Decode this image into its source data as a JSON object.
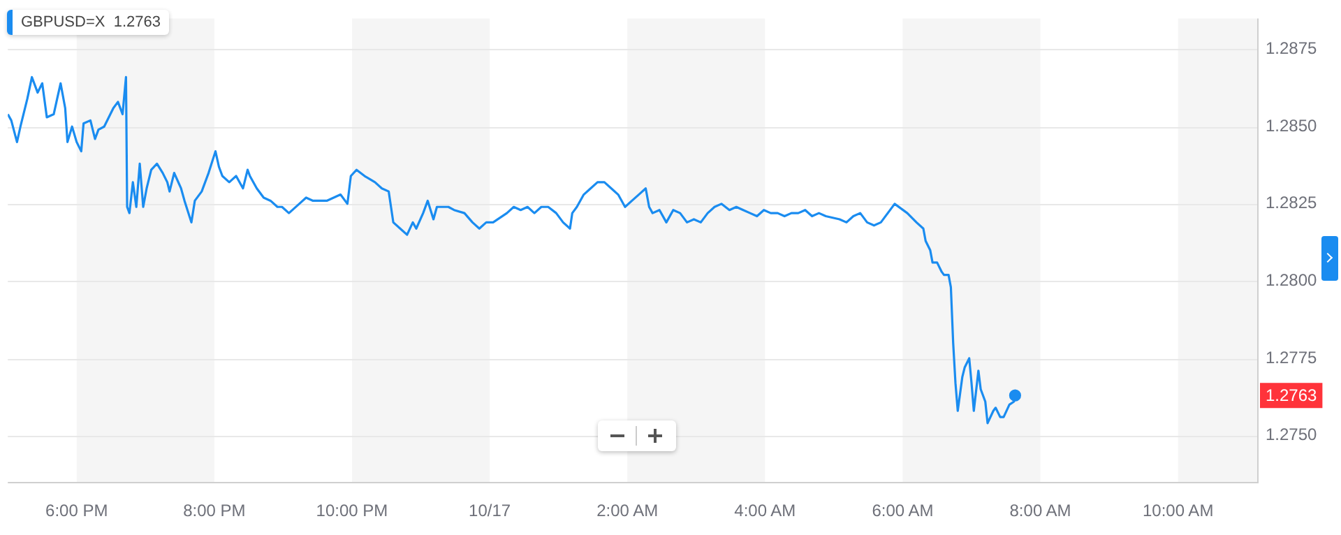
{
  "chart_data": {
    "type": "line",
    "series": [
      {
        "color": "#1a8cf0",
        "x": [
          "--10-16T17:00",
          "--10-16T17:03",
          "--10-16T17:08",
          "--10-16T17:11",
          "--10-16T17:17",
          "--10-16T17:21",
          "--10-16T17:26",
          "--10-16T17:30",
          "--10-16T17:34",
          "--10-16T17:40",
          "--10-16T17:43",
          "--10-16T17:46",
          "--10-16T17:50",
          "--10-16T17:52",
          "--10-16T17:56",
          "--10-16T18:00",
          "--10-16T18:04",
          "--10-16T18:06",
          "--10-16T18:12",
          "--10-16T18:16",
          "--10-16T18:19",
          "--10-16T18:24",
          "--10-16T18:28",
          "--10-16T18:32",
          "--10-16T18:36",
          "--10-16T18:40",
          "--10-16T18:43",
          "--10-16T18:44",
          "--10-16T18:46",
          "--10-16T18:49",
          "--10-16T18:52",
          "--10-16T18:55",
          "--10-16T18:58",
          "--10-16T19:01",
          "--10-16T19:05",
          "--10-16T19:10",
          "--10-16T19:15",
          "--10-16T19:19",
          "--10-16T19:21",
          "--10-16T19:25",
          "--10-16T19:31",
          "--10-16T19:34",
          "--10-16T19:40",
          "--10-16T19:43",
          "--10-16T19:49",
          "--10-16T19:55",
          "--10-16T20:01",
          "--10-16T20:04",
          "--10-16T20:07",
          "--10-16T20:13",
          "--10-16T20:19",
          "--10-16T20:25",
          "--10-16T20:29",
          "--10-16T20:31",
          "--10-16T20:37",
          "--10-16T20:43",
          "--10-16T20:49",
          "--10-16T20:55",
          "--10-16T20:59",
          "--10-16T21:05",
          "--10-16T21:14",
          "--10-16T21:20",
          "--10-16T21:26",
          "--10-16T21:38",
          "--10-16T21:44",
          "--10-16T21:50",
          "--10-16T21:56",
          "--10-16T21:59",
          "--10-16T22:04",
          "--10-16T22:11",
          "--10-16T22:20",
          "--10-16T22:26",
          "--10-16T22:32",
          "--10-16T22:36",
          "--10-16T22:42",
          "--10-16T22:48",
          "--10-16T22:53",
          "--10-16T22:56",
          "--10-16T23:02",
          "--10-16T23:06",
          "--10-16T23:11",
          "--10-16T23:14",
          "--10-16T23:24",
          "--10-16T23:29",
          "--10-16T23:38",
          "--10-16T23:45",
          "--10-16T23:51",
          "--10-16T23:57",
          "--10-17T00:03",
          "--10-17T00:15",
          "--10-17T00:21",
          "--10-17T00:27",
          "--10-17T00:33",
          "--10-17T00:39",
          "--10-17T00:45",
          "--10-17T00:51",
          "--10-17T00:58",
          "--10-17T01:04",
          "--10-17T01:10",
          "--10-17T01:12",
          "--10-17T01:16",
          "--10-17T01:22",
          "--10-17T01:28",
          "--10-17T01:34",
          "--10-17T01:40",
          "--10-17T01:46",
          "--10-17T01:52",
          "--10-17T01:58",
          "--10-17T02:04",
          "--10-17T02:10",
          "--10-17T02:16",
          "--10-17T02:19",
          "--10-17T02:22",
          "--10-17T02:28",
          "--10-17T02:34",
          "--10-17T02:40",
          "--10-17T02:46",
          "--10-17T02:52",
          "--10-17T02:58",
          "--10-17T03:04",
          "--10-17T03:10",
          "--10-17T03:16",
          "--10-17T03:22",
          "--10-17T03:29",
          "--10-17T03:35",
          "--10-17T03:41",
          "--10-17T03:47",
          "--10-17T03:53",
          "--10-17T03:59",
          "--10-17T04:05",
          "--10-17T04:11",
          "--10-17T04:17",
          "--10-17T04:23",
          "--10-17T04:29",
          "--10-17T04:35",
          "--10-17T04:41",
          "--10-17T04:47",
          "--10-17T04:53",
          "--10-17T05:05",
          "--10-17T05:11",
          "--10-17T05:17",
          "--10-17T05:23",
          "--10-17T05:29",
          "--10-17T05:35",
          "--10-17T05:41",
          "--10-17T05:53",
          "--10-17T06:04",
          "--10-17T06:12",
          "--10-17T06:18",
          "--10-17T06:20",
          "--10-17T06:24",
          "--10-17T06:26",
          "--10-17T06:30",
          "--10-17T06:34",
          "--10-17T06:36",
          "--10-17T06:40",
          "--10-17T06:42",
          "--10-17T06:44",
          "--10-17T06:46",
          "--10-17T06:48",
          "--10-17T06:52",
          "--10-17T06:54",
          "--10-17T06:58",
          "--10-17T07:00",
          "--10-17T07:02",
          "--10-17T07:06",
          "--10-17T07:08",
          "--10-17T07:12",
          "--10-17T07:14",
          "--10-17T07:19",
          "--10-17T07:21",
          "--10-17T07:25",
          "--10-17T07:28",
          "--10-17T07:33",
          "--10-17T07:37",
          "--10-17T07:38"
        ],
        "values": [
          1.2854,
          1.2852,
          1.2845,
          1.285,
          1.2859,
          1.2866,
          1.2861,
          1.2864,
          1.2853,
          1.2854,
          1.2859,
          1.2864,
          1.2856,
          1.2845,
          1.285,
          1.2845,
          1.2842,
          1.2851,
          1.2852,
          1.2846,
          1.2849,
          1.285,
          1.2853,
          1.2856,
          1.2858,
          1.2854,
          1.2866,
          1.2824,
          1.2822,
          1.2832,
          1.2824,
          1.2838,
          1.2824,
          1.283,
          1.2836,
          1.2838,
          1.2835,
          1.2832,
          1.2829,
          1.2835,
          1.283,
          1.2826,
          1.2819,
          1.2826,
          1.2829,
          1.2835,
          1.2842,
          1.2837,
          1.2834,
          1.2832,
          1.2834,
          1.283,
          1.2836,
          1.2834,
          1.283,
          1.2827,
          1.2826,
          1.2824,
          1.2824,
          1.2822,
          1.2825,
          1.2827,
          1.2826,
          1.2826,
          1.2827,
          1.2828,
          1.2825,
          1.2834,
          1.2836,
          1.2834,
          1.2832,
          1.283,
          1.2829,
          1.2819,
          1.2817,
          1.2815,
          1.2819,
          1.2817,
          1.2822,
          1.2826,
          1.282,
          1.2824,
          1.2824,
          1.2823,
          1.2822,
          1.2819,
          1.2817,
          1.2819,
          1.2819,
          1.2822,
          1.2824,
          1.2823,
          1.2824,
          1.2822,
          1.2824,
          1.2824,
          1.2822,
          1.2819,
          1.2817,
          1.2822,
          1.2824,
          1.2828,
          1.283,
          1.2832,
          1.2832,
          1.283,
          1.2828,
          1.2824,
          1.2826,
          1.2828,
          1.283,
          1.2824,
          1.2822,
          1.2823,
          1.2819,
          1.2823,
          1.2822,
          1.2819,
          1.282,
          1.2819,
          1.2822,
          1.2824,
          1.2825,
          1.2823,
          1.2824,
          1.2823,
          1.2822,
          1.2821,
          1.2823,
          1.2822,
          1.2822,
          1.2821,
          1.2822,
          1.2822,
          1.2823,
          1.2821,
          1.2822,
          1.2821,
          1.282,
          1.2819,
          1.2821,
          1.2822,
          1.2819,
          1.2818,
          1.2819,
          1.2825,
          1.2822,
          1.2819,
          1.2817,
          1.2813,
          1.281,
          1.2806,
          1.2806,
          1.2803,
          1.2802,
          1.2802,
          1.2798,
          1.278,
          1.2767,
          1.2758,
          1.2769,
          1.2772,
          1.2775,
          1.2767,
          1.2758,
          1.2771,
          1.2765,
          1.2761,
          1.2754,
          1.2758,
          1.2759,
          1.2756,
          1.2756,
          1.276,
          1.2761,
          1.2763
        ]
      }
    ],
    "xlim": [
      "--10-16T17:00",
      "--10-17T11:09"
    ],
    "xticks": [
      {
        "value": "--10-16T18:00",
        "label": "6:00 PM"
      },
      {
        "value": "--10-16T20:00",
        "label": "8:00 PM"
      },
      {
        "value": "--10-16T22:00",
        "label": "10:00 PM"
      },
      {
        "value": "--10-17T00:00",
        "label": "10/17"
      },
      {
        "value": "--10-17T02:00",
        "label": "2:00 AM"
      },
      {
        "value": "--10-17T04:00",
        "label": "4:00 AM"
      },
      {
        "value": "--10-17T06:00",
        "label": "6:00 AM"
      },
      {
        "value": "--10-17T08:00",
        "label": "8:00 AM"
      },
      {
        "value": "--10-17T10:00",
        "label": "10:00 AM"
      }
    ],
    "ylim": [
      1.2735,
      1.2885
    ],
    "yticks": [
      {
        "value": 1.275,
        "label": "1.2750"
      },
      {
        "value": 1.2775,
        "label": "1.2775"
      },
      {
        "value": 1.28,
        "label": "1.2800"
      },
      {
        "value": 1.2825,
        "label": "1.2825"
      },
      {
        "value": 1.285,
        "label": "1.2850"
      },
      {
        "value": 1.2875,
        "label": "1.2875"
      }
    ],
    "bands": [
      {
        "axis": "x",
        "from": "--10-16T18:00",
        "to": "--10-16T20:00",
        "color": "#f5f5f5"
      },
      {
        "axis": "x",
        "from": "--10-16T22:00",
        "to": "--10-17T00:00",
        "color": "#f5f5f5"
      },
      {
        "axis": "x",
        "from": "--10-17T02:00",
        "to": "--10-17T04:00",
        "color": "#f5f5f5"
      },
      {
        "axis": "x",
        "from": "--10-17T06:00",
        "to": "--10-17T08:00",
        "color": "#f5f5f5"
      },
      {
        "axis": "x",
        "from": "--10-17T10:00",
        "to": "--10-17T11:09",
        "color": "#f5f5f5"
      }
    ],
    "annotations": [
      "GBPUSD=X  1.2763",
      "1.2763"
    ],
    "grid": "y",
    "legend": false,
    "marker": "none",
    "line_style": "solid"
  }
}
